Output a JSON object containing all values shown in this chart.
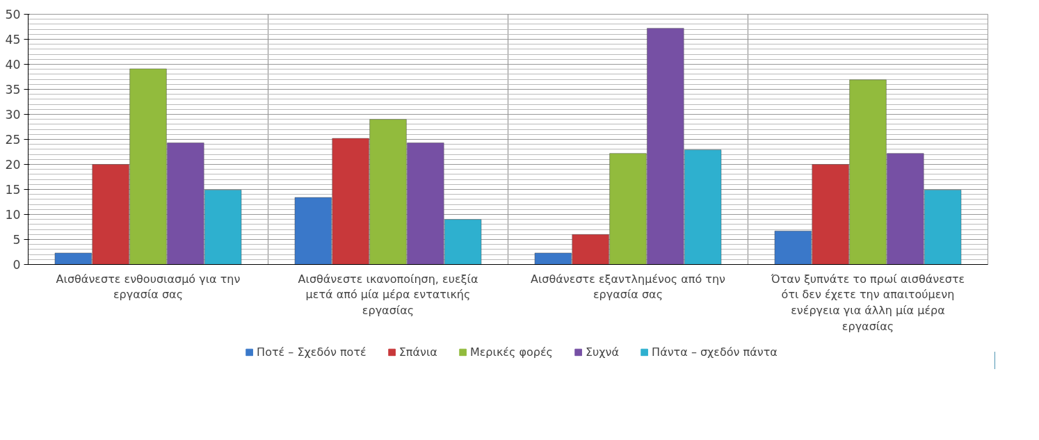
{
  "chart_data": {
    "type": "bar",
    "categories": [
      "Αισθάνεστε ενθουσιασμό για την εργασία σας",
      "Αισθάνεστε ικανοποίηση, ευεξία μετά από μία μέρα εντατικής εργασίας",
      "Αισθάνεστε εξαντλημένος από την εργασία σας",
      "Όταν ξυπνάτε το πρωί αισθάνεστε ότι δεν έχετε την απαιτούμενη ενέργεια για άλλη μία μέρα εργασίας"
    ],
    "series": [
      {
        "name": "Ποτέ – Σχεδόν ποτέ",
        "color": "#3a78c9",
        "values": [
          2.3,
          13.4,
          2.3,
          6.7
        ]
      },
      {
        "name": "Σπάνια",
        "color": "#c8383a",
        "values": [
          20.0,
          25.2,
          6.0,
          20.0
        ]
      },
      {
        "name": "Μερικές φορές",
        "color": "#92bb3d",
        "values": [
          39.1,
          29.0,
          22.2,
          36.9
        ]
      },
      {
        "name": "Συχνά",
        "color": "#7650a4",
        "values": [
          24.3,
          24.3,
          47.2,
          22.2
        ]
      },
      {
        "name": "Πάντα – σχεδόν πάντα",
        "color": "#2eb0cf",
        "values": [
          14.9,
          9.0,
          22.9,
          14.9
        ]
      }
    ],
    "ylim": [
      0,
      50
    ],
    "yticks": [
      0,
      5,
      10,
      15,
      20,
      25,
      30,
      35,
      40,
      45,
      50
    ],
    "grid": true,
    "legend": "bottom"
  }
}
